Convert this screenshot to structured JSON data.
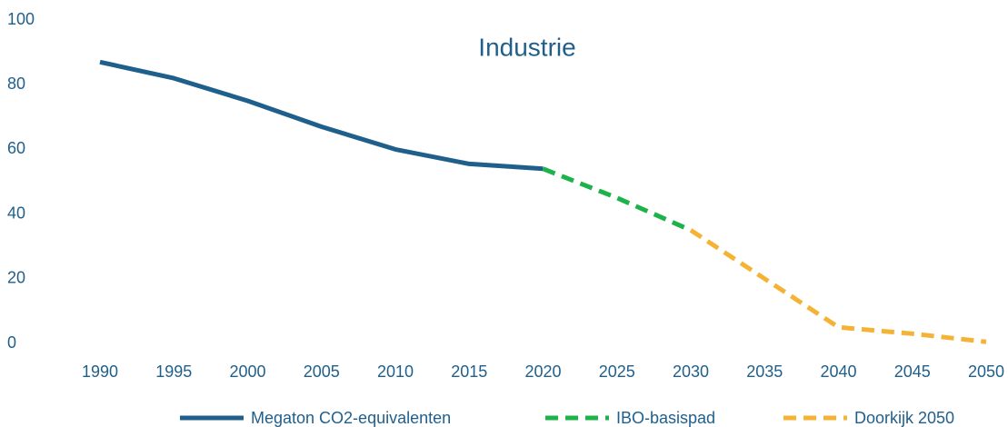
{
  "chart_data": {
    "type": "line",
    "title": "Industrie",
    "categories": [
      "1990",
      "1995",
      "2000",
      "2005",
      "2010",
      "2015",
      "2020",
      "2025",
      "2030",
      "2035",
      "2040",
      "2045",
      "2050"
    ],
    "series": [
      {
        "name": "Megaton CO2-equivalenten",
        "color": "#1f5f8b",
        "dash": false,
        "values": [
          87,
          82,
          75,
          67,
          60,
          55.5,
          54,
          null,
          null,
          null,
          null,
          null,
          null
        ]
      },
      {
        "name": "IBO-basispad",
        "color": "#1db34a",
        "dash": true,
        "values": [
          null,
          null,
          null,
          null,
          null,
          null,
          54,
          45,
          35,
          null,
          null,
          null,
          null
        ]
      },
      {
        "name": "Doorkijk 2050",
        "color": "#f5b335",
        "dash": true,
        "values": [
          null,
          null,
          null,
          null,
          null,
          null,
          null,
          null,
          35,
          20,
          5,
          3,
          0.5
        ]
      }
    ],
    "ylim": [
      0,
      100
    ],
    "yticks": [
      0,
      20,
      40,
      60,
      80,
      100
    ],
    "grid": false,
    "legend": "bottom"
  }
}
